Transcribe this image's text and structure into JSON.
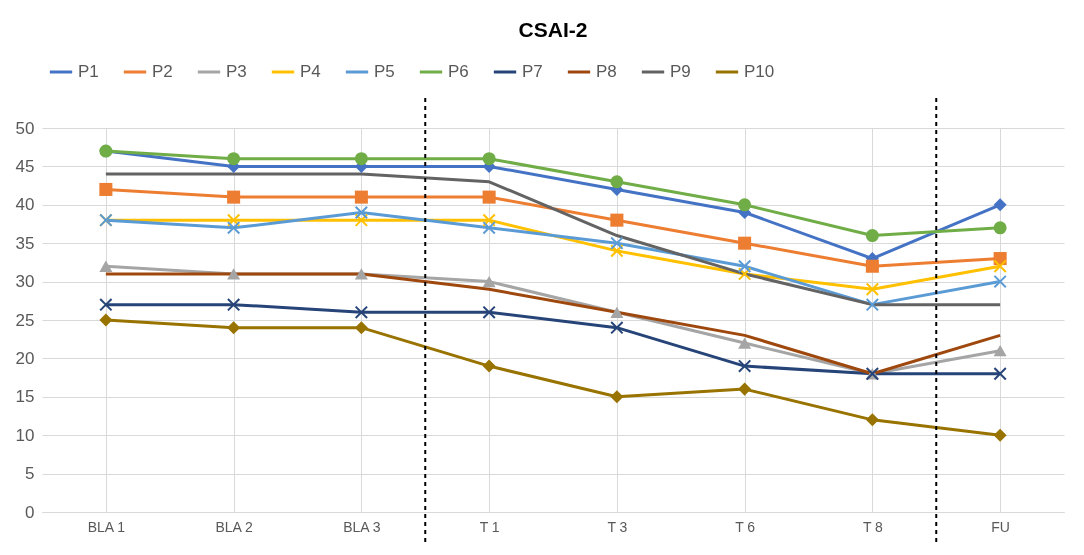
{
  "chart_data": {
    "type": "line",
    "title": "CSAI-2",
    "categories": [
      "BLA 1",
      "BLA 2",
      "BLA 3",
      "T 1",
      "T 3",
      "T 6",
      "T 8",
      "FU"
    ],
    "ylim": [
      0,
      50
    ],
    "yticks": [
      0,
      5,
      10,
      15,
      20,
      25,
      30,
      35,
      40,
      45,
      50
    ],
    "grid": true,
    "legend": "top",
    "series": [
      {
        "name": "P1",
        "color": "#4472c4",
        "marker": "diamond",
        "values": [
          47,
          45,
          45,
          45,
          42,
          39,
          33,
          40
        ]
      },
      {
        "name": "P2",
        "color": "#ed7d31",
        "marker": "square",
        "values": [
          42,
          41,
          41,
          41,
          38,
          35,
          32,
          33
        ]
      },
      {
        "name": "P3",
        "color": "#a5a5a5",
        "marker": "triangle",
        "values": [
          32,
          31,
          31,
          30,
          26,
          22,
          18,
          21
        ]
      },
      {
        "name": "P4",
        "color": "#ffc000",
        "marker": "cross",
        "values": [
          38,
          38,
          38,
          38,
          34,
          31,
          29,
          32
        ]
      },
      {
        "name": "P5",
        "color": "#5b9bd5",
        "marker": "cross",
        "values": [
          38,
          37,
          39,
          37,
          35,
          32,
          27,
          30
        ]
      },
      {
        "name": "P6",
        "color": "#70ad47",
        "marker": "circle",
        "values": [
          47,
          46,
          46,
          46,
          43,
          40,
          36,
          37
        ]
      },
      {
        "name": "P7",
        "color": "#264478",
        "marker": "cross",
        "values": [
          27,
          27,
          26,
          26,
          24,
          19,
          18,
          18
        ]
      },
      {
        "name": "P8",
        "color": "#9e480e",
        "marker": "none",
        "values": [
          31,
          31,
          31,
          29,
          26,
          23,
          18,
          23
        ]
      },
      {
        "name": "P9",
        "color": "#636363",
        "marker": "none",
        "values": [
          44,
          44,
          44,
          43,
          36,
          31,
          27,
          27
        ]
      },
      {
        "name": "P10",
        "color": "#997300",
        "marker": "diamond",
        "values": [
          25,
          24,
          24,
          19,
          15,
          16,
          12,
          10
        ]
      }
    ]
  }
}
